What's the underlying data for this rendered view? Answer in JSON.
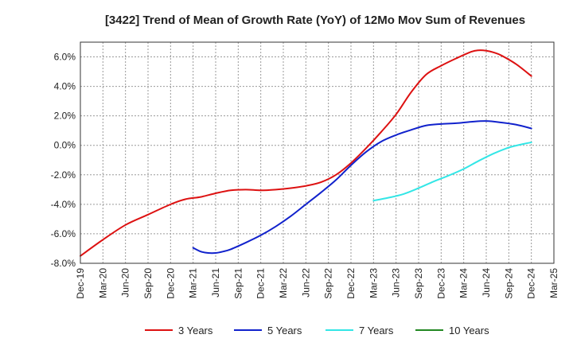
{
  "chart_data": {
    "type": "line",
    "title": "[3422]  Trend of Mean of Growth Rate (YoY) of 12Mo Mov Sum of Revenues",
    "xlabel": "",
    "ylabel": "",
    "ylim": [
      -8.0,
      7.0
    ],
    "y_ticks": [
      "6.0%",
      "4.0%",
      "2.0%",
      "0.0%",
      "-2.0%",
      "-4.0%",
      "-6.0%",
      "-8.0%"
    ],
    "y_tick_values": [
      6,
      4,
      2,
      0,
      -2,
      -4,
      -6,
      -8
    ],
    "x_ticks": [
      "Dec-19",
      "Mar-20",
      "Jun-20",
      "Sep-20",
      "Dec-20",
      "Mar-21",
      "Jun-21",
      "Sep-21",
      "Dec-21",
      "Mar-22",
      "Jun-22",
      "Sep-22",
      "Dec-22",
      "Mar-23",
      "Jun-23",
      "Sep-23",
      "Dec-23",
      "Mar-24",
      "Jun-24",
      "Sep-24",
      "Dec-24",
      "Mar-25"
    ],
    "x_tick_index": [
      0,
      3,
      6,
      9,
      12,
      15,
      18,
      21,
      24,
      27,
      30,
      33,
      36,
      39,
      42,
      45,
      48,
      51,
      54,
      57,
      60,
      63
    ],
    "x_range": [
      0,
      63
    ],
    "grid": true,
    "legend_position": "bottom",
    "series": [
      {
        "name": "3 Years",
        "color": "#dd1111",
        "x": [
          0,
          3,
          6,
          9,
          12,
          14,
          16,
          18,
          20,
          22,
          24,
          26,
          28,
          30,
          32,
          34,
          36,
          38,
          40,
          42,
          44,
          46,
          48,
          50,
          52,
          53,
          54,
          55,
          56,
          58,
          60
        ],
        "y": [
          -7.5,
          -6.4,
          -5.4,
          -4.7,
          -4.0,
          -3.65,
          -3.5,
          -3.25,
          -3.05,
          -3.0,
          -3.05,
          -3.0,
          -2.9,
          -2.75,
          -2.5,
          -2.0,
          -1.2,
          -0.2,
          0.9,
          2.1,
          3.6,
          4.8,
          5.4,
          5.9,
          6.35,
          6.45,
          6.42,
          6.3,
          6.1,
          5.5,
          4.7
        ]
      },
      {
        "name": "5 Years",
        "color": "#1122cc",
        "x": [
          15,
          16,
          17,
          18,
          19,
          20,
          22,
          24,
          26,
          28,
          30,
          32,
          34,
          36,
          38,
          40,
          42,
          44,
          46,
          48,
          50,
          52,
          54,
          56,
          58,
          60
        ],
        "y": [
          -6.95,
          -7.2,
          -7.3,
          -7.3,
          -7.2,
          -7.05,
          -6.6,
          -6.1,
          -5.5,
          -4.8,
          -4.0,
          -3.2,
          -2.35,
          -1.35,
          -0.45,
          0.25,
          0.7,
          1.05,
          1.35,
          1.45,
          1.5,
          1.6,
          1.65,
          1.55,
          1.4,
          1.15
        ]
      },
      {
        "name": "7 Years",
        "color": "#33e6e6",
        "x": [
          39,
          41,
          43,
          45,
          47,
          49,
          51,
          53,
          55,
          57,
          59,
          60
        ],
        "y": [
          -3.75,
          -3.55,
          -3.3,
          -2.9,
          -2.45,
          -2.05,
          -1.6,
          -1.05,
          -0.55,
          -0.15,
          0.1,
          0.2
        ]
      },
      {
        "name": "10 Years",
        "color": "#228822",
        "x": [],
        "y": []
      }
    ]
  }
}
